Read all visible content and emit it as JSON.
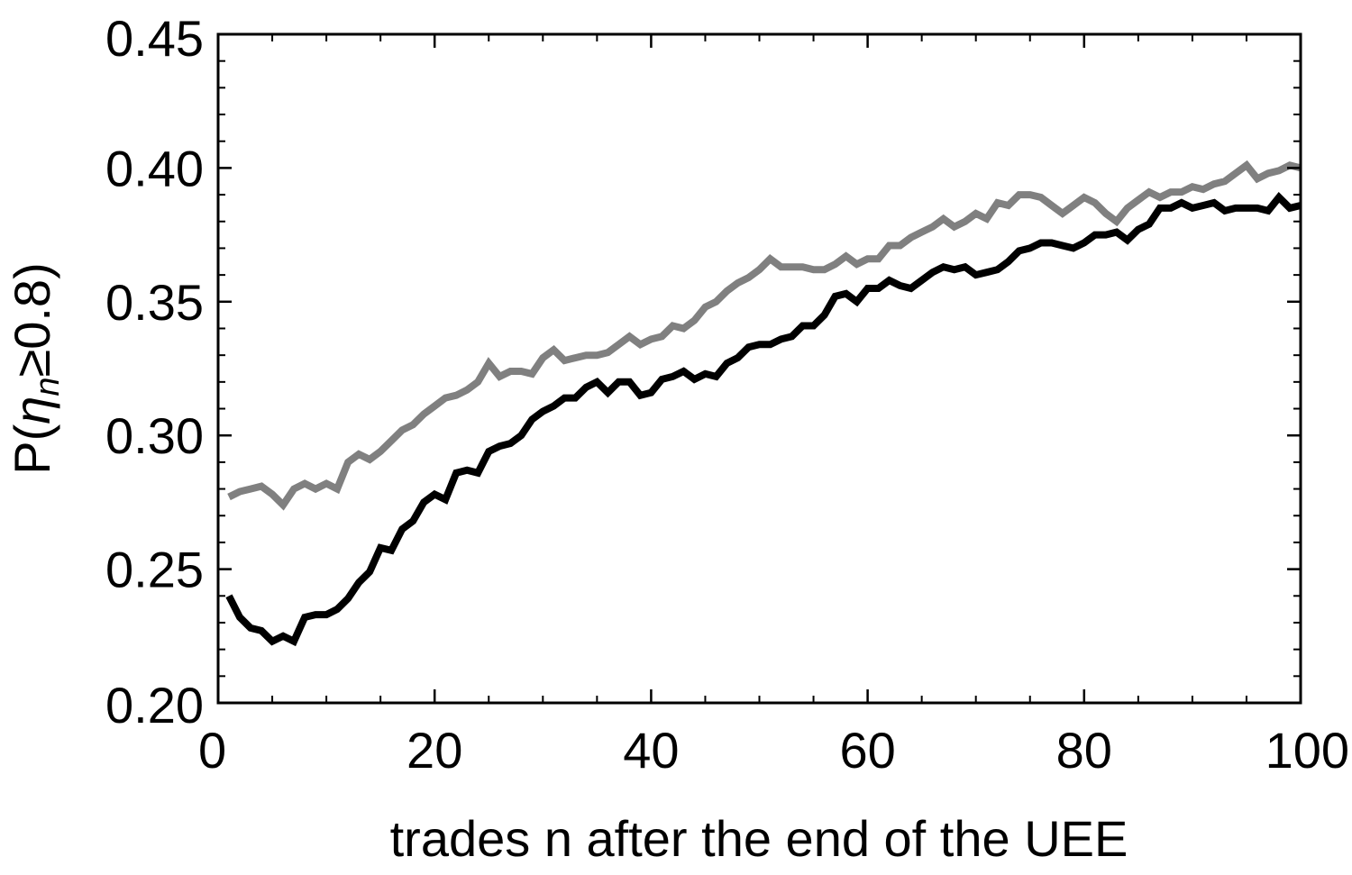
{
  "chart_data": {
    "type": "line",
    "title": "",
    "xlabel": "trades n after the end of the UEE",
    "ylabel": {
      "prefix": "P(",
      "symbol": "η",
      "subscript": "n",
      "suffix": "≥0.8)"
    },
    "xlim": [
      0,
      100
    ],
    "ylim": [
      0.2,
      0.45
    ],
    "x_ticks": [
      0,
      20,
      40,
      60,
      80,
      100
    ],
    "x_tick_labels": [
      "0",
      "20",
      "40",
      "60",
      "80",
      "100"
    ],
    "y_ticks": [
      0.2,
      0.25,
      0.3,
      0.35,
      0.4,
      0.45
    ],
    "y_tick_labels": [
      "0.20",
      "0.25",
      "0.30",
      "0.35",
      "0.40",
      "0.45"
    ],
    "grid": false,
    "legend": "none",
    "series": [
      {
        "color": "#808080",
        "points": [
          [
            1,
            0.277
          ],
          [
            2,
            0.279
          ],
          [
            3,
            0.28
          ],
          [
            4,
            0.281
          ],
          [
            5,
            0.278
          ],
          [
            6,
            0.274
          ],
          [
            7,
            0.28
          ],
          [
            8,
            0.282
          ],
          [
            9,
            0.28
          ],
          [
            10,
            0.282
          ],
          [
            11,
            0.28
          ],
          [
            12,
            0.29
          ],
          [
            13,
            0.293
          ],
          [
            14,
            0.291
          ],
          [
            15,
            0.294
          ],
          [
            16,
            0.298
          ],
          [
            17,
            0.302
          ],
          [
            18,
            0.304
          ],
          [
            19,
            0.308
          ],
          [
            20,
            0.311
          ],
          [
            21,
            0.314
          ],
          [
            22,
            0.315
          ],
          [
            23,
            0.317
          ],
          [
            24,
            0.32
          ],
          [
            25,
            0.327
          ],
          [
            26,
            0.322
          ],
          [
            27,
            0.324
          ],
          [
            28,
            0.324
          ],
          [
            29,
            0.323
          ],
          [
            30,
            0.329
          ],
          [
            31,
            0.332
          ],
          [
            32,
            0.328
          ],
          [
            33,
            0.329
          ],
          [
            34,
            0.33
          ],
          [
            35,
            0.33
          ],
          [
            36,
            0.331
          ],
          [
            37,
            0.334
          ],
          [
            38,
            0.337
          ],
          [
            39,
            0.334
          ],
          [
            40,
            0.336
          ],
          [
            41,
            0.337
          ],
          [
            42,
            0.341
          ],
          [
            43,
            0.34
          ],
          [
            44,
            0.343
          ],
          [
            45,
            0.348
          ],
          [
            46,
            0.35
          ],
          [
            47,
            0.354
          ],
          [
            48,
            0.357
          ],
          [
            49,
            0.359
          ],
          [
            50,
            0.362
          ],
          [
            51,
            0.366
          ],
          [
            52,
            0.363
          ],
          [
            53,
            0.363
          ],
          [
            54,
            0.363
          ],
          [
            55,
            0.362
          ],
          [
            56,
            0.362
          ],
          [
            57,
            0.364
          ],
          [
            58,
            0.367
          ],
          [
            59,
            0.364
          ],
          [
            60,
            0.366
          ],
          [
            61,
            0.366
          ],
          [
            62,
            0.371
          ],
          [
            63,
            0.371
          ],
          [
            64,
            0.374
          ],
          [
            65,
            0.376
          ],
          [
            66,
            0.378
          ],
          [
            67,
            0.381
          ],
          [
            68,
            0.378
          ],
          [
            69,
            0.38
          ],
          [
            70,
            0.383
          ],
          [
            71,
            0.381
          ],
          [
            72,
            0.387
          ],
          [
            73,
            0.386
          ],
          [
            74,
            0.39
          ],
          [
            75,
            0.39
          ],
          [
            76,
            0.389
          ],
          [
            77,
            0.386
          ],
          [
            78,
            0.383
          ],
          [
            79,
            0.386
          ],
          [
            80,
            0.389
          ],
          [
            81,
            0.387
          ],
          [
            82,
            0.383
          ],
          [
            83,
            0.38
          ],
          [
            84,
            0.385
          ],
          [
            85,
            0.388
          ],
          [
            86,
            0.391
          ],
          [
            87,
            0.389
          ],
          [
            88,
            0.391
          ],
          [
            89,
            0.391
          ],
          [
            90,
            0.393
          ],
          [
            91,
            0.392
          ],
          [
            92,
            0.394
          ],
          [
            93,
            0.395
          ],
          [
            94,
            0.398
          ],
          [
            95,
            0.401
          ],
          [
            96,
            0.396
          ],
          [
            97,
            0.398
          ],
          [
            98,
            0.399
          ],
          [
            99,
            0.401
          ],
          [
            100,
            0.4
          ]
        ]
      },
      {
        "color": "#000000",
        "points": [
          [
            1,
            0.24
          ],
          [
            2,
            0.232
          ],
          [
            3,
            0.228
          ],
          [
            4,
            0.227
          ],
          [
            5,
            0.223
          ],
          [
            6,
            0.225
          ],
          [
            7,
            0.223
          ],
          [
            8,
            0.232
          ],
          [
            9,
            0.233
          ],
          [
            10,
            0.233
          ],
          [
            11,
            0.235
          ],
          [
            12,
            0.239
          ],
          [
            13,
            0.245
          ],
          [
            14,
            0.249
          ],
          [
            15,
            0.258
          ],
          [
            16,
            0.257
          ],
          [
            17,
            0.265
          ],
          [
            18,
            0.268
          ],
          [
            19,
            0.275
          ],
          [
            20,
            0.278
          ],
          [
            21,
            0.276
          ],
          [
            22,
            0.286
          ],
          [
            23,
            0.287
          ],
          [
            24,
            0.286
          ],
          [
            25,
            0.294
          ],
          [
            26,
            0.296
          ],
          [
            27,
            0.297
          ],
          [
            28,
            0.3
          ],
          [
            29,
            0.306
          ],
          [
            30,
            0.309
          ],
          [
            31,
            0.311
          ],
          [
            32,
            0.314
          ],
          [
            33,
            0.314
          ],
          [
            34,
            0.318
          ],
          [
            35,
            0.32
          ],
          [
            36,
            0.316
          ],
          [
            37,
            0.32
          ],
          [
            38,
            0.32
          ],
          [
            39,
            0.315
          ],
          [
            40,
            0.316
          ],
          [
            41,
            0.321
          ],
          [
            42,
            0.322
          ],
          [
            43,
            0.324
          ],
          [
            44,
            0.321
          ],
          [
            45,
            0.323
          ],
          [
            46,
            0.322
          ],
          [
            47,
            0.327
          ],
          [
            48,
            0.329
          ],
          [
            49,
            0.333
          ],
          [
            50,
            0.334
          ],
          [
            51,
            0.334
          ],
          [
            52,
            0.336
          ],
          [
            53,
            0.337
          ],
          [
            54,
            0.341
          ],
          [
            55,
            0.341
          ],
          [
            56,
            0.345
          ],
          [
            57,
            0.352
          ],
          [
            58,
            0.353
          ],
          [
            59,
            0.35
          ],
          [
            60,
            0.355
          ],
          [
            61,
            0.355
          ],
          [
            62,
            0.358
          ],
          [
            63,
            0.356
          ],
          [
            64,
            0.355
          ],
          [
            65,
            0.358
          ],
          [
            66,
            0.361
          ],
          [
            67,
            0.363
          ],
          [
            68,
            0.362
          ],
          [
            69,
            0.363
          ],
          [
            70,
            0.36
          ],
          [
            71,
            0.361
          ],
          [
            72,
            0.362
          ],
          [
            73,
            0.365
          ],
          [
            74,
            0.369
          ],
          [
            75,
            0.37
          ],
          [
            76,
            0.372
          ],
          [
            77,
            0.372
          ],
          [
            78,
            0.371
          ],
          [
            79,
            0.37
          ],
          [
            80,
            0.372
          ],
          [
            81,
            0.375
          ],
          [
            82,
            0.375
          ],
          [
            83,
            0.376
          ],
          [
            84,
            0.373
          ],
          [
            85,
            0.377
          ],
          [
            86,
            0.379
          ],
          [
            87,
            0.385
          ],
          [
            88,
            0.385
          ],
          [
            89,
            0.387
          ],
          [
            90,
            0.385
          ],
          [
            91,
            0.386
          ],
          [
            92,
            0.387
          ],
          [
            93,
            0.384
          ],
          [
            94,
            0.385
          ],
          [
            95,
            0.385
          ],
          [
            96,
            0.385
          ],
          [
            97,
            0.384
          ],
          [
            98,
            0.389
          ],
          [
            99,
            0.385
          ],
          [
            100,
            0.386
          ]
        ]
      }
    ]
  }
}
